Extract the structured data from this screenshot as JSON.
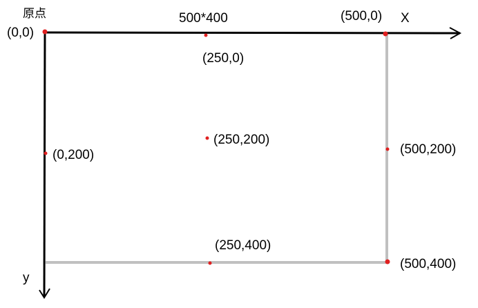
{
  "origin_label": "原点",
  "size_label": "500*400",
  "x_axis_label": "X",
  "y_axis_label": "y",
  "points": [
    {
      "label": "(0,0)"
    },
    {
      "label": "(250,0)"
    },
    {
      "label": "(500,0)"
    },
    {
      "label": "(0,200)"
    },
    {
      "label": "(250,200)"
    },
    {
      "label": "(500,200)"
    },
    {
      "label": "(250,400)"
    },
    {
      "label": "(500,400)"
    }
  ],
  "colors": {
    "axis": "#000000",
    "rect_edge": "#c0c0c0",
    "point": "#e02020",
    "text": "#000000"
  }
}
